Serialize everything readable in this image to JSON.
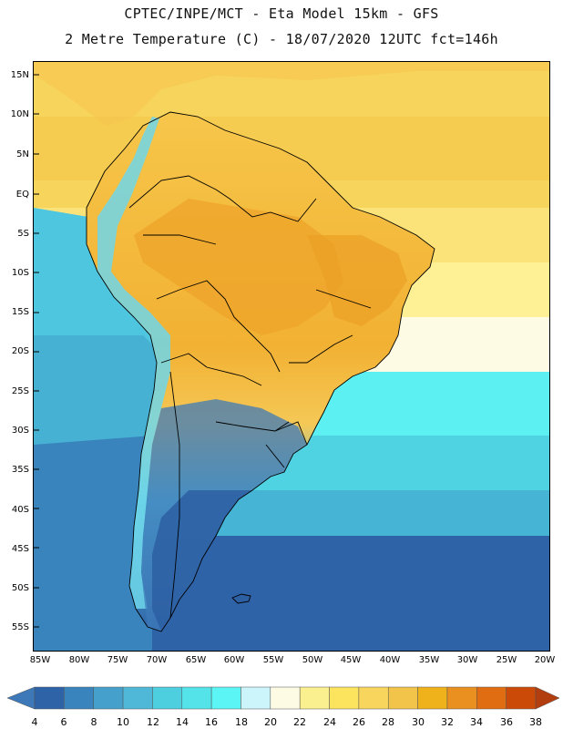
{
  "header": {
    "line1": "CPTEC/INPE/MCT -  Eta Model 15km - GFS",
    "line2": "2 Metre Temperature (C) - 18/07/2020 12UTC fct=146h"
  },
  "map": {
    "lat_labels": [
      "15N",
      "10N",
      "5N",
      "EQ",
      "5S",
      "10S",
      "15S",
      "20S",
      "25S",
      "30S",
      "35S",
      "40S",
      "45S",
      "50S",
      "55S"
    ],
    "lon_labels": [
      "85W",
      "80W",
      "75W",
      "70W",
      "65W",
      "60W",
      "55W",
      "50W",
      "45W",
      "40W",
      "35W",
      "30W",
      "25W",
      "20W"
    ],
    "colors": {
      "ocean_cold": "#2f63a8",
      "land_hot": "#f2b437",
      "border": "#000000"
    }
  },
  "colorbar": {
    "ticks": [
      "4",
      "6",
      "8",
      "10",
      "12",
      "14",
      "16",
      "18",
      "20",
      "22",
      "24",
      "26",
      "28",
      "30",
      "32",
      "34",
      "36",
      "38"
    ],
    "colors": [
      "#3d79b8",
      "#2f63a8",
      "#3a84bd",
      "#45a0cb",
      "#4fb8d9",
      "#4dcfe0",
      "#53e3e8",
      "#5cf5f5",
      "#ccf4fb",
      "#fdfbe4",
      "#fbf08f",
      "#fde45e",
      "#f8d55c",
      "#f3c44a",
      "#f0b21a",
      "#e99020",
      "#e06d12",
      "#cc4a08",
      "#b23d0f"
    ]
  }
}
